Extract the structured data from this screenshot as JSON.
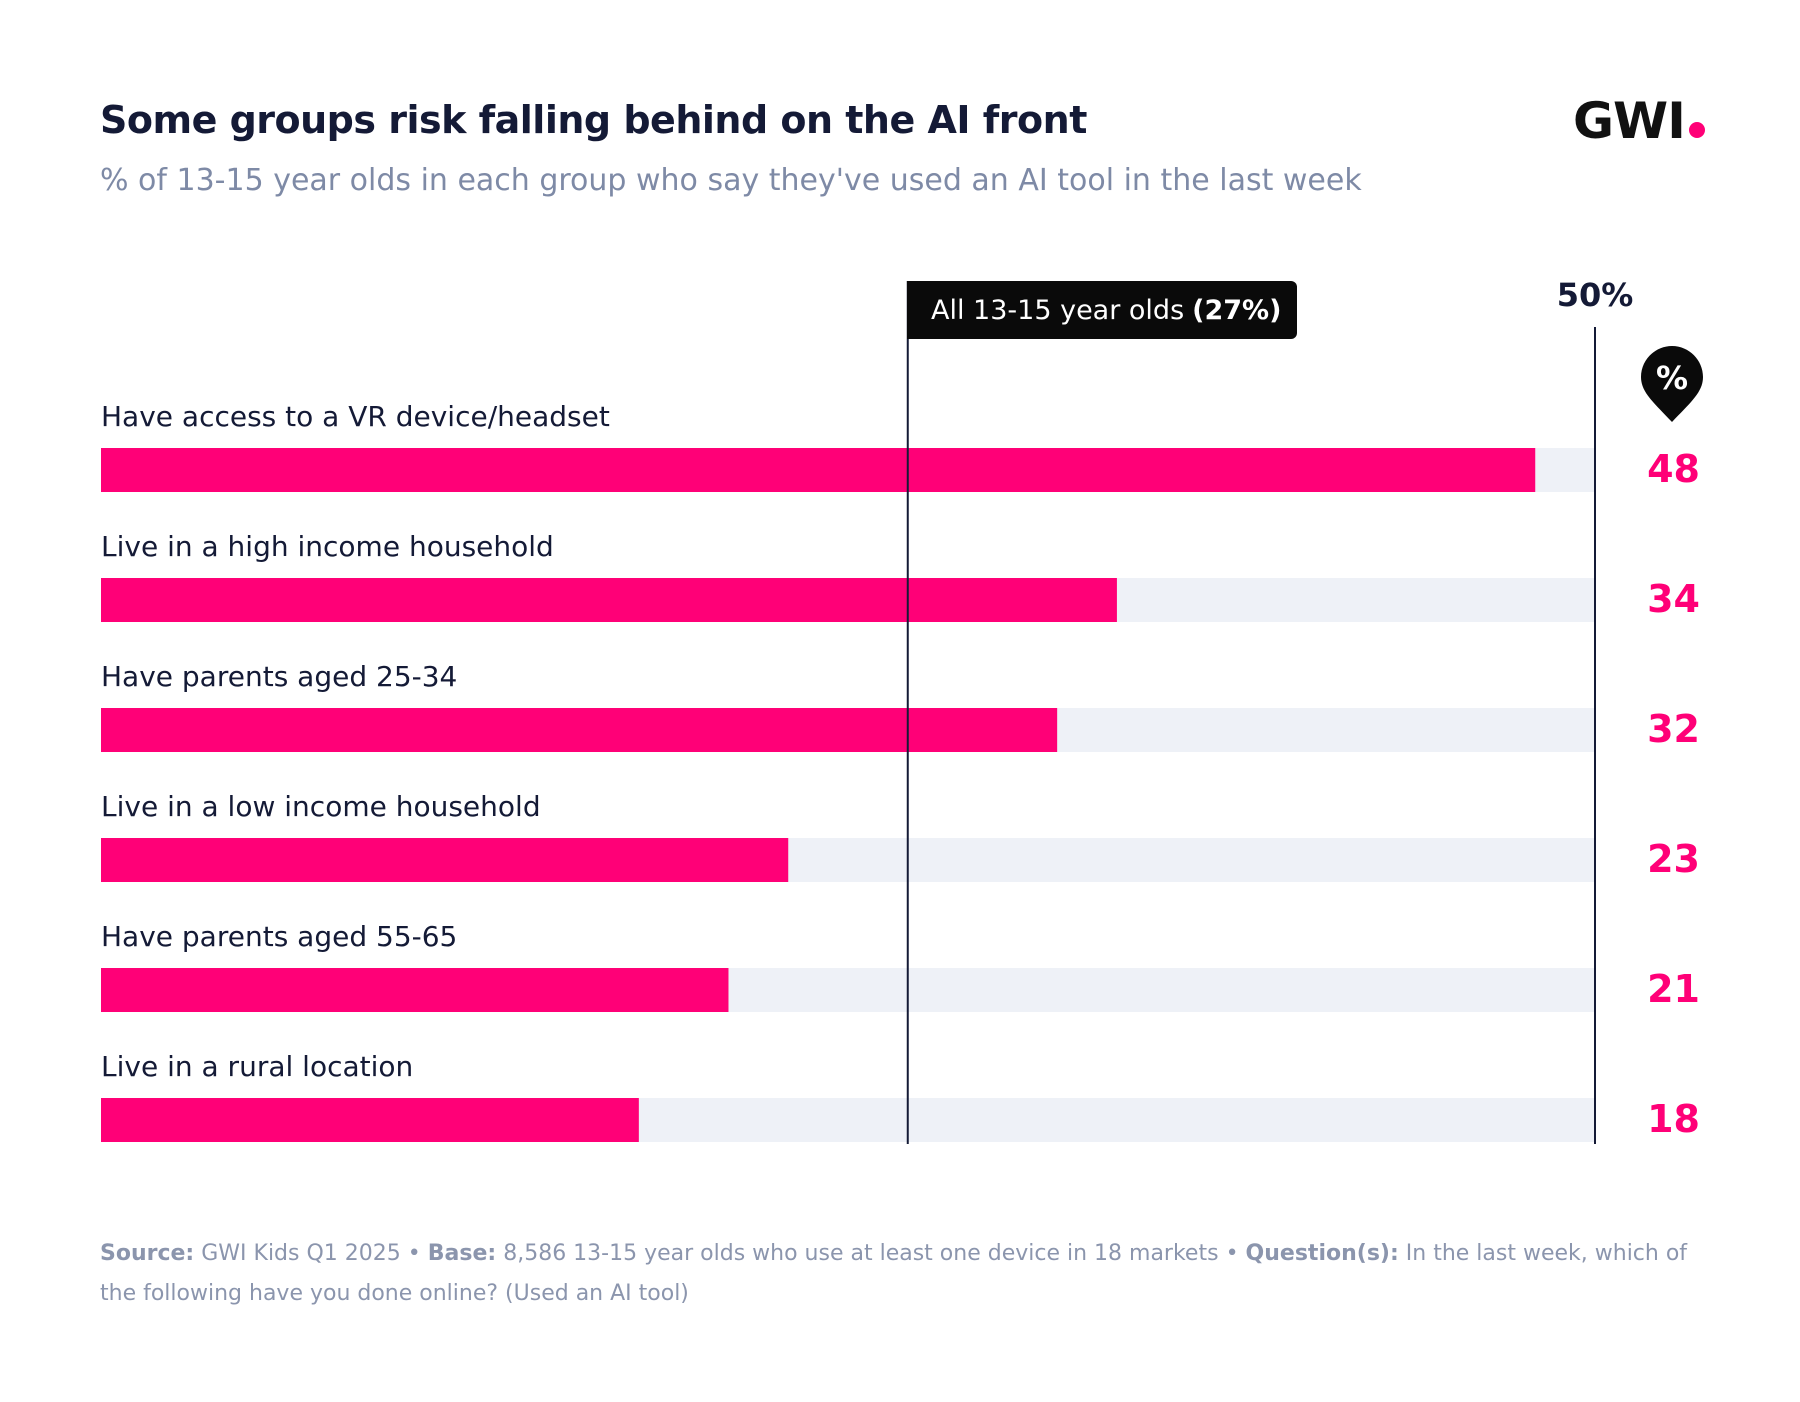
{
  "header": {
    "title": "Some groups risk falling behind on the AI front",
    "subtitle": "% of 13-15 year olds in each group who say they've used an AI tool in the last week",
    "logo": "GWI"
  },
  "chart_data": {
    "type": "bar",
    "orientation": "horizontal",
    "categories": [
      "Have access to a VR device/headset",
      "Live in a high income household",
      "Have parents aged 25-34",
      "Live in a low income household",
      "Have parents aged 55-65",
      "Live in a rural location"
    ],
    "values": [
      48,
      34,
      32,
      23,
      21,
      18
    ],
    "xlim": [
      0,
      50
    ],
    "max_label": "50%",
    "unit_badge": "%",
    "reference_line": {
      "value": 27,
      "label": "All 13-15 year olds",
      "value_label": "(27%)"
    },
    "colors": {
      "bar": "#ff0077",
      "track": "#eef1f7",
      "reference": "#141a36"
    }
  },
  "footer": {
    "source_label": "Source:",
    "source": "GWI Kids Q1 2025",
    "sep1": "•",
    "base_label": "Base:",
    "base": "8,586 13-15 year olds who use at least one device in 18 markets",
    "sep2": "•",
    "question_label": "Question(s):",
    "question": "In the last week, which of the following have you done online? (Used an AI tool)"
  }
}
